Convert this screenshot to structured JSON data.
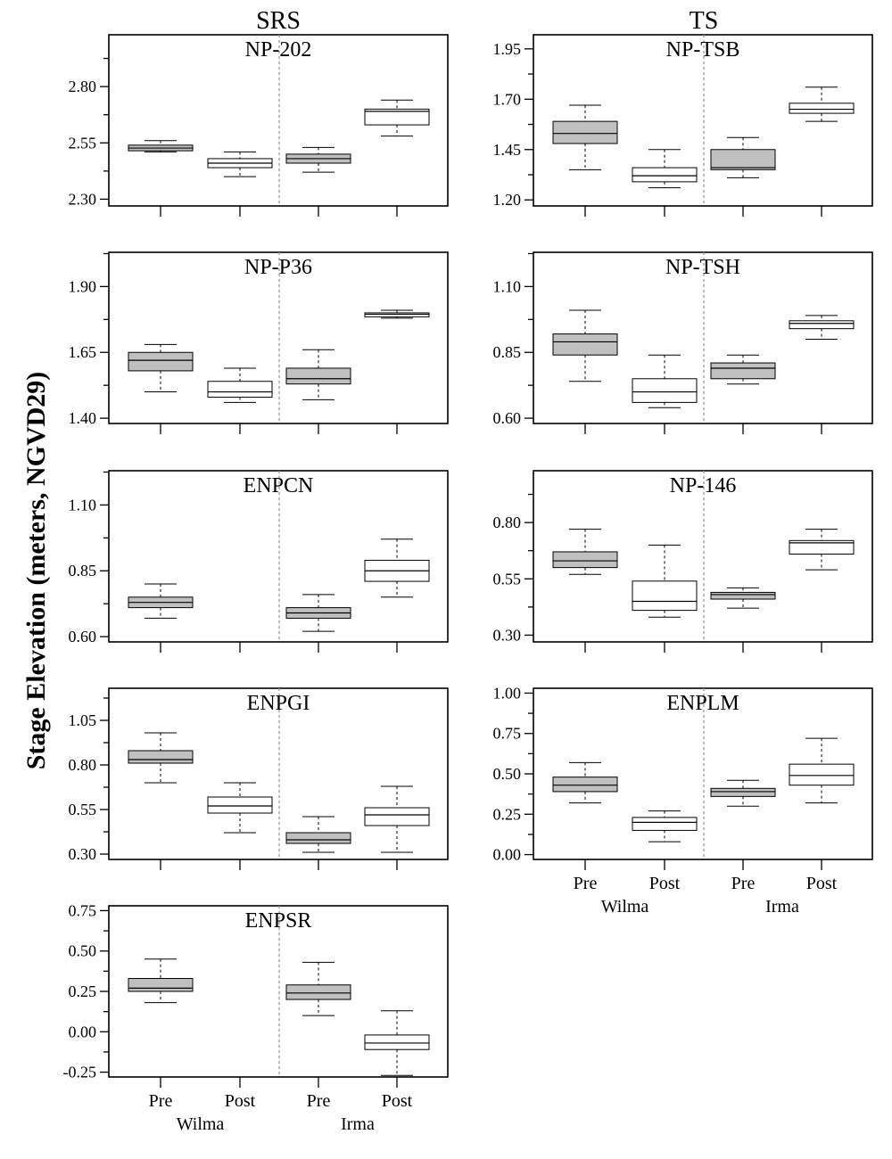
{
  "figure": {
    "column_titles": [
      "SRS",
      "TS"
    ],
    "ylabel": "Stage Elevation (meters, NGVD29)"
  },
  "colors": {
    "pre": "#c0c0c0",
    "post": "#ffffff",
    "divider": "#999999"
  },
  "chart_data": [
    {
      "type": "box",
      "title": "NP-202",
      "column": "SRS",
      "yticks": [
        2.3,
        2.55,
        2.8
      ],
      "ytick_labels": [
        "2.30",
        "2.55",
        "2.80"
      ],
      "ylim": [
        2.27,
        3.03
      ],
      "xtick_labels": [],
      "groups": [
        {
          "hurricane": "Wilma",
          "period": "Pre",
          "whisker_low": 2.51,
          "q1": 2.515,
          "median": 2.527,
          "q3": 2.54,
          "whisker_high": 2.56
        },
        {
          "hurricane": "Wilma",
          "period": "Post",
          "whisker_low": 2.4,
          "q1": 2.44,
          "median": 2.46,
          "q3": 2.48,
          "whisker_high": 2.51
        },
        {
          "hurricane": "Irma",
          "period": "Pre",
          "whisker_low": 2.42,
          "q1": 2.46,
          "median": 2.48,
          "q3": 2.5,
          "whisker_high": 2.53
        },
        {
          "hurricane": "Irma",
          "period": "Post",
          "whisker_low": 2.58,
          "q1": 2.63,
          "median": 2.69,
          "q3": 2.7,
          "whisker_high": 2.74
        }
      ]
    },
    {
      "type": "box",
      "title": "NP-TSB",
      "column": "TS",
      "yticks": [
        1.2,
        1.45,
        1.7,
        1.95
      ],
      "ytick_labels": [
        "1.20",
        "1.45",
        "1.70",
        "1.95"
      ],
      "ylim": [
        1.17,
        2.02
      ],
      "xtick_labels": [],
      "groups": [
        {
          "hurricane": "Wilma",
          "period": "Pre",
          "whisker_low": 1.35,
          "q1": 1.48,
          "median": 1.53,
          "q3": 1.59,
          "whisker_high": 1.67
        },
        {
          "hurricane": "Wilma",
          "period": "Post",
          "whisker_low": 1.26,
          "q1": 1.29,
          "median": 1.32,
          "q3": 1.36,
          "whisker_high": 1.45
        },
        {
          "hurricane": "Irma",
          "period": "Pre",
          "whisker_low": 1.31,
          "q1": 1.35,
          "median": 1.36,
          "q3": 1.45,
          "whisker_high": 1.51
        },
        {
          "hurricane": "Irma",
          "period": "Post",
          "whisker_low": 1.59,
          "q1": 1.63,
          "median": 1.65,
          "q3": 1.68,
          "whisker_high": 1.76
        }
      ]
    },
    {
      "type": "box",
      "title": "NP-P36",
      "column": "SRS",
      "yticks": [
        1.4,
        1.65,
        1.9
      ],
      "ytick_labels": [
        "1.40",
        "1.65",
        "1.90"
      ],
      "ylim": [
        1.38,
        2.03
      ],
      "xtick_labels": [],
      "groups": [
        {
          "hurricane": "Wilma",
          "period": "Pre",
          "whisker_low": 1.5,
          "q1": 1.58,
          "median": 1.62,
          "q3": 1.65,
          "whisker_high": 1.68
        },
        {
          "hurricane": "Wilma",
          "period": "Post",
          "whisker_low": 1.46,
          "q1": 1.48,
          "median": 1.5,
          "q3": 1.54,
          "whisker_high": 1.59
        },
        {
          "hurricane": "Irma",
          "period": "Pre",
          "whisker_low": 1.47,
          "q1": 1.53,
          "median": 1.55,
          "q3": 1.59,
          "whisker_high": 1.66
        },
        {
          "hurricane": "Irma",
          "period": "Post",
          "whisker_low": 1.78,
          "q1": 1.785,
          "median": 1.795,
          "q3": 1.8,
          "whisker_high": 1.81
        }
      ]
    },
    {
      "type": "box",
      "title": "NP-TSH",
      "column": "TS",
      "yticks": [
        0.6,
        0.85,
        1.1
      ],
      "ytick_labels": [
        "0.60",
        "0.85",
        "1.10"
      ],
      "ylim": [
        0.58,
        1.23
      ],
      "xtick_labels": [],
      "groups": [
        {
          "hurricane": "Wilma",
          "period": "Pre",
          "whisker_low": 0.74,
          "q1": 0.84,
          "median": 0.89,
          "q3": 0.92,
          "whisker_high": 1.01
        },
        {
          "hurricane": "Wilma",
          "period": "Post",
          "whisker_low": 0.64,
          "q1": 0.66,
          "median": 0.7,
          "q3": 0.75,
          "whisker_high": 0.84
        },
        {
          "hurricane": "Irma",
          "period": "Pre",
          "whisker_low": 0.73,
          "q1": 0.75,
          "median": 0.79,
          "q3": 0.81,
          "whisker_high": 0.84
        },
        {
          "hurricane": "Irma",
          "period": "Post",
          "whisker_low": 0.9,
          "q1": 0.94,
          "median": 0.96,
          "q3": 0.97,
          "whisker_high": 0.99
        }
      ]
    },
    {
      "type": "box",
      "title": "ENPCN",
      "column": "SRS",
      "yticks": [
        0.6,
        0.85,
        1.1
      ],
      "ytick_labels": [
        "0.60",
        "0.85",
        "1.10"
      ],
      "ylim": [
        0.58,
        1.23
      ],
      "xtick_labels": [],
      "groups": [
        {
          "hurricane": "Wilma",
          "period": "Pre",
          "whisker_low": 0.67,
          "q1": 0.71,
          "median": 0.73,
          "q3": 0.75,
          "whisker_high": 0.8
        },
        {
          "hurricane": "Irma",
          "period": "Pre",
          "whisker_low": 0.62,
          "q1": 0.67,
          "median": 0.69,
          "q3": 0.71,
          "whisker_high": 0.76
        },
        {
          "hurricane": "Irma",
          "period": "Post",
          "whisker_low": 0.75,
          "q1": 0.81,
          "median": 0.85,
          "q3": 0.89,
          "whisker_high": 0.97
        }
      ]
    },
    {
      "type": "box",
      "title": "NP-146",
      "column": "TS",
      "yticks": [
        0.3,
        0.55,
        0.8
      ],
      "ytick_labels": [
        "0.30",
        "0.55",
        "0.80"
      ],
      "ylim": [
        0.27,
        1.03
      ],
      "xtick_labels": [],
      "groups": [
        {
          "hurricane": "Wilma",
          "period": "Pre",
          "whisker_low": 0.57,
          "q1": 0.6,
          "median": 0.63,
          "q3": 0.67,
          "whisker_high": 0.77
        },
        {
          "hurricane": "Wilma",
          "period": "Post",
          "whisker_low": 0.38,
          "q1": 0.41,
          "median": 0.45,
          "q3": 0.54,
          "whisker_high": 0.7
        },
        {
          "hurricane": "Irma",
          "period": "Pre",
          "whisker_low": 0.42,
          "q1": 0.46,
          "median": 0.48,
          "q3": 0.49,
          "whisker_high": 0.51
        },
        {
          "hurricane": "Irma",
          "period": "Post",
          "whisker_low": 0.59,
          "q1": 0.66,
          "median": 0.71,
          "q3": 0.72,
          "whisker_high": 0.77
        }
      ]
    },
    {
      "type": "box",
      "title": "ENPGI",
      "column": "SRS",
      "yticks": [
        0.3,
        0.55,
        0.8,
        1.05
      ],
      "ytick_labels": [
        "0.30",
        "0.55",
        "0.80",
        "1.05"
      ],
      "ylim": [
        0.27,
        1.23
      ],
      "xtick_labels": [],
      "groups": [
        {
          "hurricane": "Wilma",
          "period": "Pre",
          "whisker_low": 0.7,
          "q1": 0.81,
          "median": 0.83,
          "q3": 0.88,
          "whisker_high": 0.98
        },
        {
          "hurricane": "Wilma",
          "period": "Post",
          "whisker_low": 0.42,
          "q1": 0.53,
          "median": 0.57,
          "q3": 0.62,
          "whisker_high": 0.7
        },
        {
          "hurricane": "Irma",
          "period": "Pre",
          "whisker_low": 0.31,
          "q1": 0.36,
          "median": 0.38,
          "q3": 0.42,
          "whisker_high": 0.51
        },
        {
          "hurricane": "Irma",
          "period": "Post",
          "whisker_low": 0.31,
          "q1": 0.46,
          "median": 0.52,
          "q3": 0.56,
          "whisker_high": 0.68
        }
      ]
    },
    {
      "type": "box",
      "title": "ENPLM",
      "column": "TS",
      "yticks": [
        0.0,
        0.25,
        0.5,
        0.75,
        1.0
      ],
      "ytick_labels": [
        "0.00",
        "0.25",
        "0.50",
        "0.75",
        "1.00"
      ],
      "ylim": [
        -0.03,
        1.03
      ],
      "xtick_labels": [
        "Pre",
        "Post",
        "Pre",
        "Post"
      ],
      "xgroup_labels": [
        "Wilma",
        "Irma"
      ],
      "groups": [
        {
          "hurricane": "Wilma",
          "period": "Pre",
          "whisker_low": 0.32,
          "q1": 0.39,
          "median": 0.43,
          "q3": 0.48,
          "whisker_high": 0.57
        },
        {
          "hurricane": "Wilma",
          "period": "Post",
          "whisker_low": 0.08,
          "q1": 0.15,
          "median": 0.2,
          "q3": 0.23,
          "whisker_high": 0.27
        },
        {
          "hurricane": "Irma",
          "period": "Pre",
          "whisker_low": 0.3,
          "q1": 0.36,
          "median": 0.39,
          "q3": 0.41,
          "whisker_high": 0.46
        },
        {
          "hurricane": "Irma",
          "period": "Post",
          "whisker_low": 0.32,
          "q1": 0.43,
          "median": 0.49,
          "q3": 0.56,
          "whisker_high": 0.72
        }
      ]
    },
    {
      "type": "box",
      "title": "ENPSR",
      "column": "SRS",
      "yticks": [
        -0.25,
        0.0,
        0.25,
        0.5,
        0.75
      ],
      "ytick_labels": [
        "-0.25",
        "0.00",
        "0.25",
        "0.50",
        "0.75"
      ],
      "ylim": [
        -0.28,
        0.78
      ],
      "xtick_labels": [
        "Pre",
        "Post",
        "Pre",
        "Post"
      ],
      "xgroup_labels": [
        "Wilma",
        "Irma"
      ],
      "groups": [
        {
          "hurricane": "Wilma",
          "period": "Pre",
          "whisker_low": 0.18,
          "q1": 0.25,
          "median": 0.27,
          "q3": 0.33,
          "whisker_high": 0.45
        },
        {
          "hurricane": "Irma",
          "period": "Pre",
          "whisker_low": 0.1,
          "q1": 0.2,
          "median": 0.24,
          "q3": 0.29,
          "whisker_high": 0.43
        },
        {
          "hurricane": "Irma",
          "period": "Post",
          "whisker_low": -0.27,
          "q1": -0.11,
          "median": -0.07,
          "q3": -0.02,
          "whisker_high": 0.13
        }
      ]
    }
  ]
}
